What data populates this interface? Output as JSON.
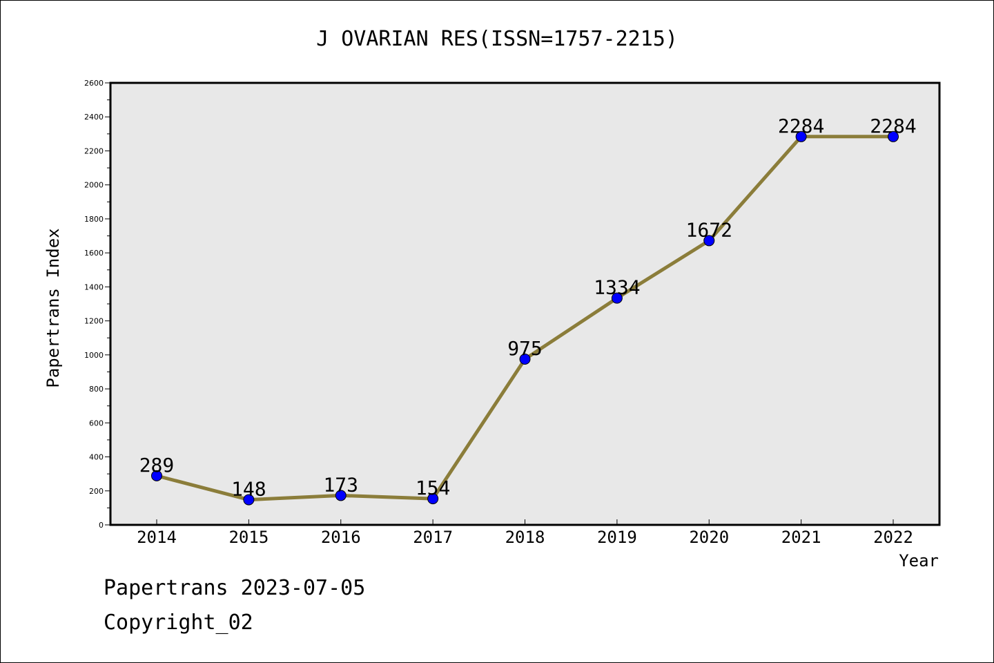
{
  "chart_data": {
    "type": "line",
    "title": "J OVARIAN RES(ISSN=1757-2215)",
    "xlabel": "Year",
    "ylabel": "Papertrans Index",
    "categories": [
      "2014",
      "2015",
      "2016",
      "2017",
      "2018",
      "2019",
      "2020",
      "2021",
      "2022"
    ],
    "series": [
      {
        "values": [
          289,
          148,
          173,
          154,
          975,
          1334,
          1672,
          2284,
          2284
        ]
      }
    ],
    "data_labels": [
      "289",
      "148",
      "173",
      "154",
      "975",
      "1334",
      "1672",
      "2284",
      "2284"
    ],
    "ylim": [
      0,
      2600
    ],
    "yticks": [
      "0",
      "200",
      "400",
      "600",
      "800",
      "1000",
      "1200",
      "1400",
      "1600",
      "1800",
      "2000",
      "2200",
      "2400",
      "2600"
    ],
    "grid": false,
    "legend": "none",
    "colors": {
      "line": "#8B7D3A",
      "marker": "#0000FF",
      "plot_background": "#E8E8E8"
    }
  },
  "footer": {
    "line1": "Papertrans 2023-07-05",
    "line2": "Copyright_02"
  }
}
